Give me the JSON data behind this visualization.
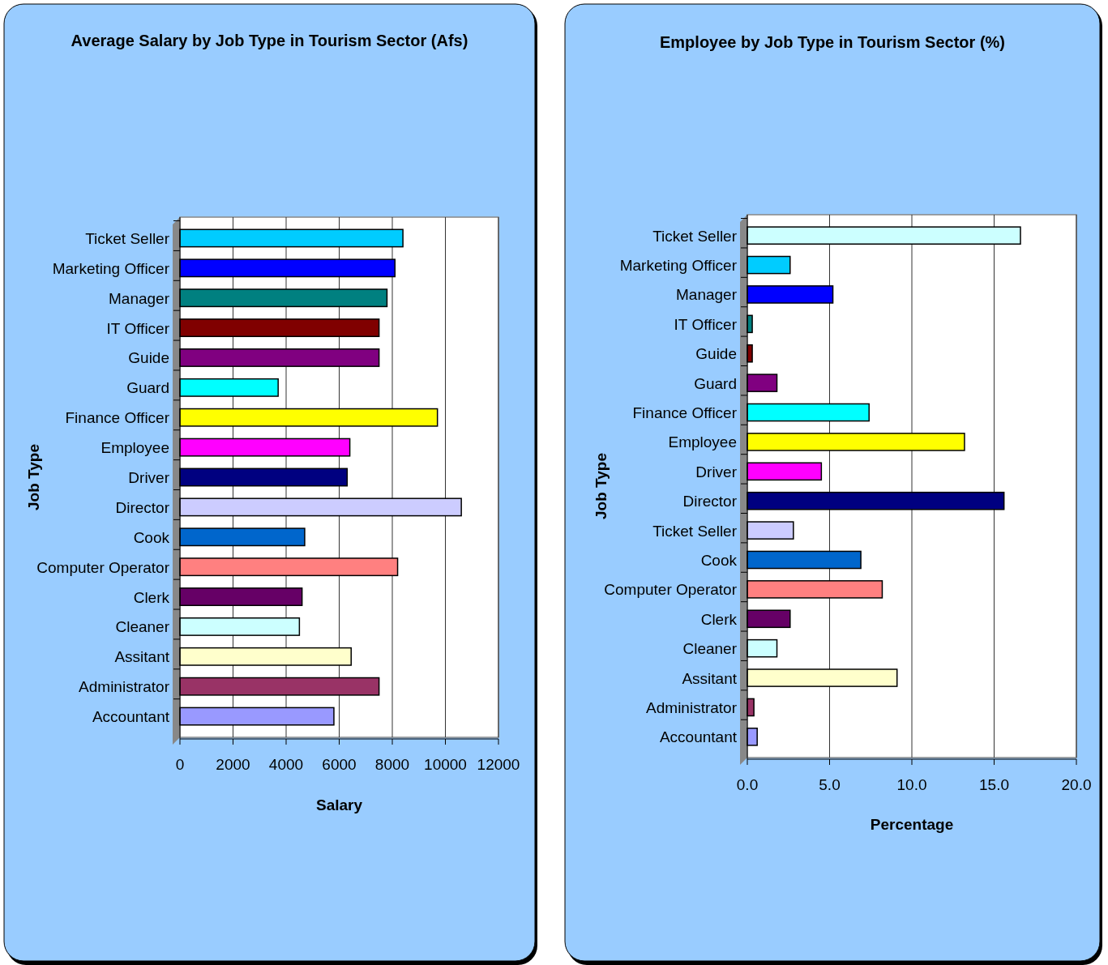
{
  "chart_data": [
    {
      "type": "bar",
      "orientation": "horizontal",
      "title": "Average Salary by Job Type in Tourism Sector (Afs)",
      "xlabel": "Salary",
      "ylabel": "Job Type",
      "categories": [
        "Ticket Seller",
        "Marketing Officer",
        "Manager",
        "IT Officer",
        "Guide",
        "Guard",
        "Finance Officer",
        "Employee",
        "Driver",
        "Director",
        "Cook",
        "Computer Operator",
        "Clerk",
        "Cleaner",
        "Assitant",
        "Administrator",
        "Accountant"
      ],
      "values": [
        8400,
        8100,
        7800,
        7500,
        7500,
        3700,
        9700,
        6400,
        6300,
        10600,
        4700,
        8200,
        4600,
        4500,
        6450,
        7500,
        5800
      ],
      "colors": [
        "#00ccff",
        "#0000ff",
        "#008080",
        "#800000",
        "#800080",
        "#00ffff",
        "#ffff00",
        "#ff00ff",
        "#000080",
        "#ccccff",
        "#0066cc",
        "#ff8080",
        "#660066",
        "#ccffff",
        "#ffffcc",
        "#993366",
        "#9999ff"
      ],
      "xlim": [
        0,
        12000
      ],
      "xticks": [
        0,
        2000,
        4000,
        6000,
        8000,
        10000,
        12000
      ],
      "grid": "x"
    },
    {
      "type": "bar",
      "orientation": "horizontal",
      "title": "Employee by Job Type in Tourism Sector (%)",
      "xlabel": "Percentage",
      "ylabel": "Job Type",
      "categories": [
        "Ticket Seller",
        "Marketing Officer",
        "Manager",
        "IT Officer",
        "Guide",
        "Guard",
        "Finance Officer",
        "Employee",
        "Driver",
        "Director",
        "Ticket Seller",
        "Cook",
        "Computer Operator",
        "Clerk",
        "Cleaner",
        "Assitant",
        "Administrator",
        "Accountant"
      ],
      "values": [
        16.6,
        2.6,
        5.2,
        0.3,
        0.3,
        1.8,
        7.4,
        13.2,
        4.5,
        15.6,
        2.8,
        6.9,
        8.2,
        2.6,
        1.8,
        9.1,
        0.4,
        0.6
      ],
      "colors": [
        "#ccffff",
        "#00ccff",
        "#0000ff",
        "#008080",
        "#800000",
        "#800080",
        "#00ffff",
        "#ffff00",
        "#ff00ff",
        "#000080",
        "#ccccff",
        "#0066cc",
        "#ff8080",
        "#660066",
        "#ccffff",
        "#ffffcc",
        "#993366",
        "#9999ff"
      ],
      "xlim": [
        0,
        20
      ],
      "xticks": [
        {
          "value": 0,
          "label": "0.0"
        },
        {
          "value": 5,
          "label": "5.0"
        },
        {
          "value": 10,
          "label": "10.0"
        },
        {
          "value": 15,
          "label": "15.0"
        },
        {
          "value": 20,
          "label": "20.0"
        }
      ],
      "grid": "x"
    }
  ]
}
